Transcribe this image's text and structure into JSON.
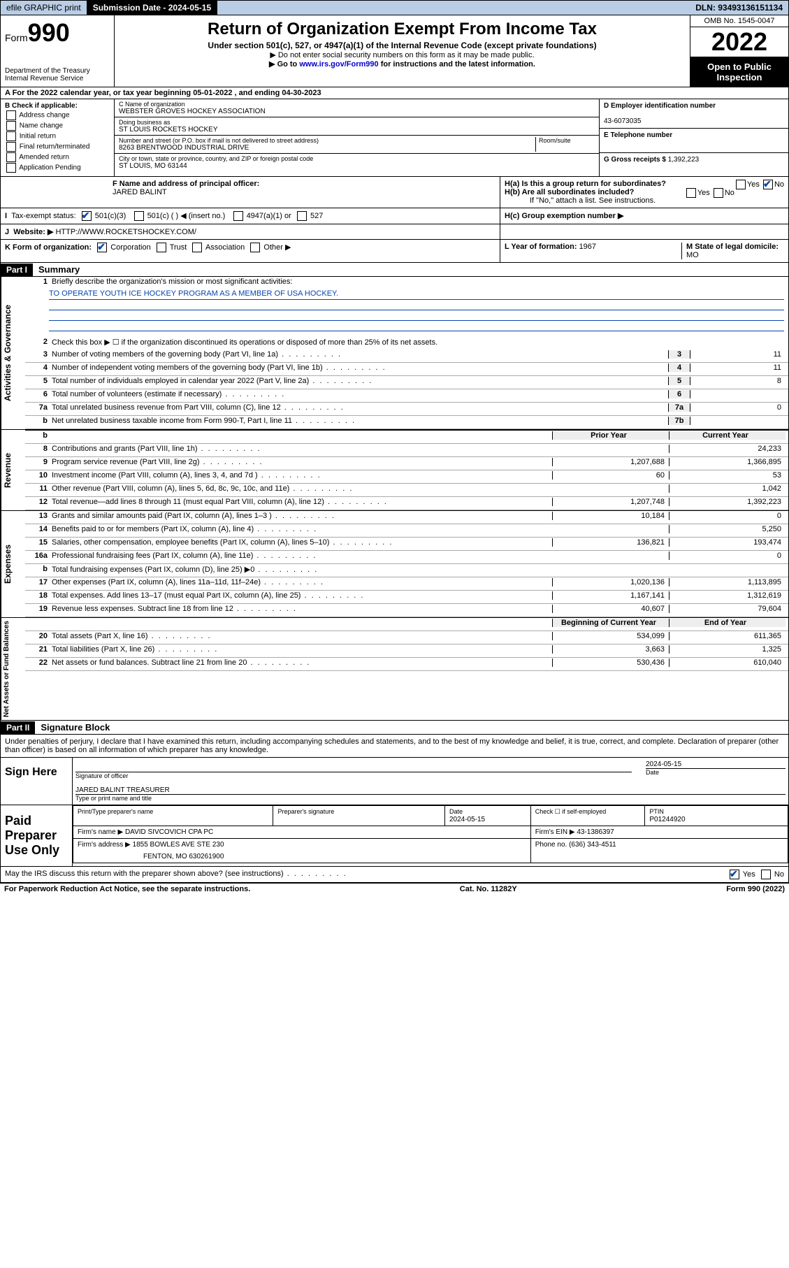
{
  "topbar": {
    "efile": "efile GRAPHIC print",
    "sub_date_lbl": "Submission Date - ",
    "sub_date": "2024-05-15",
    "dln_lbl": "DLN: ",
    "dln": "93493136151134"
  },
  "header": {
    "form_word": "Form",
    "form_num": "990",
    "dept": "Department of the Treasury\nInternal Revenue Service",
    "title": "Return of Organization Exempt From Income Tax",
    "sub1": "Under section 501(c), 527, or 4947(a)(1) of the Internal Revenue Code (except private foundations)",
    "sub2": "▶ Do not enter social security numbers on this form as it may be made public.",
    "sub3_pre": "▶ Go to ",
    "sub3_link": "www.irs.gov/Form990",
    "sub3_post": " for instructions and the latest information.",
    "omb": "OMB No. 1545-0047",
    "year": "2022",
    "open": "Open to Public Inspection"
  },
  "rowA": "A For the 2022 calendar year, or tax year beginning 05-01-2022   , and ending 04-30-2023",
  "colB": {
    "hdr": "B Check if applicable:",
    "items": [
      "Address change",
      "Name change",
      "Initial return",
      "Final return/terminated",
      "Amended return",
      "Application Pending"
    ]
  },
  "colC": {
    "name_lbl": "C Name of organization",
    "name": "WEBSTER GROVES HOCKEY ASSOCIATION",
    "dba_lbl": "Doing business as",
    "dba": "ST LOUIS ROCKETS HOCKEY",
    "addr_lbl": "Number and street (or P.O. box if mail is not delivered to street address)",
    "room_lbl": "Room/suite",
    "addr": "8263 BRENTWOOD INDUSTRIAL DRIVE",
    "city_lbl": "City or town, state or province, country, and ZIP or foreign postal code",
    "city": "ST LOUIS, MO  63144"
  },
  "colD": {
    "ein_lbl": "D Employer identification number",
    "ein": "43-6073035",
    "tel_lbl": "E Telephone number",
    "gross_lbl": "G Gross receipts $ ",
    "gross": "1,392,223"
  },
  "rowF": {
    "f_lbl": "F Name and address of principal officer:",
    "f_name": "JARED BALINT",
    "ha": "H(a)  Is this a group return for subordinates?",
    "hb": "H(b)  Are all subordinates included?",
    "hb_note": "If \"No,\" attach a list. See instructions.",
    "hc": "H(c)  Group exemption number ▶"
  },
  "rowI": {
    "lbl": "Tax-exempt status:",
    "opts": [
      "501(c)(3)",
      "501(c) (  ) ◀ (insert no.)",
      "4947(a)(1) or",
      "527"
    ]
  },
  "rowJ": {
    "lbl": "Website: ▶  ",
    "val": "HTTP://WWW.ROCKETSHOCKEY.COM/"
  },
  "rowK": {
    "lbl": "K Form of organization:",
    "opts": [
      "Corporation",
      "Trust",
      "Association",
      "Other ▶"
    ],
    "l_lbl": "L Year of formation: ",
    "l_val": "1967",
    "m_lbl": "M State of legal domicile:",
    "m_val": "MO"
  },
  "part1": {
    "hdr": "Part I",
    "title": "Summary",
    "vtabs": [
      "Activities & Governance",
      "Revenue",
      "Expenses",
      "Net Assets or Fund Balances"
    ],
    "l1_lbl": "Briefly describe the organization's mission or most significant activities:",
    "l1_val": "TO OPERATE YOUTH ICE HOCKEY PROGRAM AS A MEMBER OF USA HOCKEY.",
    "l2": "Check this box ▶ ☐  if the organization discontinued its operations or disposed of more than 25% of its net assets.",
    "lines_gov": [
      {
        "n": "3",
        "t": "Number of voting members of the governing body (Part VI, line 1a)",
        "box": "3",
        "v": "11"
      },
      {
        "n": "4",
        "t": "Number of independent voting members of the governing body (Part VI, line 1b)",
        "box": "4",
        "v": "11"
      },
      {
        "n": "5",
        "t": "Total number of individuals employed in calendar year 2022 (Part V, line 2a)",
        "box": "5",
        "v": "8"
      },
      {
        "n": "6",
        "t": "Total number of volunteers (estimate if necessary)",
        "box": "6",
        "v": ""
      },
      {
        "n": "7a",
        "t": "Total unrelated business revenue from Part VIII, column (C), line 12",
        "box": "7a",
        "v": "0"
      },
      {
        "n": "b",
        "t": "Net unrelated business taxable income from Form 990-T, Part I, line 11",
        "box": "7b",
        "v": ""
      }
    ],
    "col_hdrs": [
      "Prior Year",
      "Current Year"
    ],
    "lines_rev": [
      {
        "n": "8",
        "t": "Contributions and grants (Part VIII, line 1h)",
        "p": "",
        "c": "24,233"
      },
      {
        "n": "9",
        "t": "Program service revenue (Part VIII, line 2g)",
        "p": "1,207,688",
        "c": "1,366,895"
      },
      {
        "n": "10",
        "t": "Investment income (Part VIII, column (A), lines 3, 4, and 7d )",
        "p": "60",
        "c": "53"
      },
      {
        "n": "11",
        "t": "Other revenue (Part VIII, column (A), lines 5, 6d, 8c, 9c, 10c, and 11e)",
        "p": "",
        "c": "1,042"
      },
      {
        "n": "12",
        "t": "Total revenue—add lines 8 through 11 (must equal Part VIII, column (A), line 12)",
        "p": "1,207,748",
        "c": "1,392,223"
      }
    ],
    "lines_exp": [
      {
        "n": "13",
        "t": "Grants and similar amounts paid (Part IX, column (A), lines 1–3 )",
        "p": "10,184",
        "c": "0"
      },
      {
        "n": "14",
        "t": "Benefits paid to or for members (Part IX, column (A), line 4)",
        "p": "",
        "c": "5,250"
      },
      {
        "n": "15",
        "t": "Salaries, other compensation, employee benefits (Part IX, column (A), lines 5–10)",
        "p": "136,821",
        "c": "193,474"
      },
      {
        "n": "16a",
        "t": "Professional fundraising fees (Part IX, column (A), line 11e)",
        "p": "",
        "c": "0"
      },
      {
        "n": "b",
        "t": "Total fundraising expenses (Part IX, column (D), line 25) ▶0",
        "p": "",
        "c": "",
        "gray": true
      },
      {
        "n": "17",
        "t": "Other expenses (Part IX, column (A), lines 11a–11d, 11f–24e)",
        "p": "1,020,136",
        "c": "1,113,895"
      },
      {
        "n": "18",
        "t": "Total expenses. Add lines 13–17 (must equal Part IX, column (A), line 25)",
        "p": "1,167,141",
        "c": "1,312,619"
      },
      {
        "n": "19",
        "t": "Revenue less expenses. Subtract line 18 from line 12",
        "p": "40,607",
        "c": "79,604"
      }
    ],
    "col_hdrs2": [
      "Beginning of Current Year",
      "End of Year"
    ],
    "lines_net": [
      {
        "n": "20",
        "t": "Total assets (Part X, line 16)",
        "p": "534,099",
        "c": "611,365"
      },
      {
        "n": "21",
        "t": "Total liabilities (Part X, line 26)",
        "p": "3,663",
        "c": "1,325"
      },
      {
        "n": "22",
        "t": "Net assets or fund balances. Subtract line 21 from line 20",
        "p": "530,436",
        "c": "610,040"
      }
    ]
  },
  "part2": {
    "hdr": "Part II",
    "title": "Signature Block",
    "decl": "Under penalties of perjury, I declare that I have examined this return, including accompanying schedules and statements, and to the best of my knowledge and belief, it is true, correct, and complete. Declaration of preparer (other than officer) is based on all information of which preparer has any knowledge.",
    "sign_here": "Sign Here",
    "sig_officer": "Signature of officer",
    "sig_date": "2024-05-15",
    "sig_date_lbl": "Date",
    "officer": "JARED BALINT TREASURER",
    "officer_lbl": "Type or print name and title",
    "paid_prep": "Paid Preparer Use Only",
    "prep_name_lbl": "Print/Type preparer's name",
    "prep_sig_lbl": "Preparer's signature",
    "prep_date_lbl": "Date",
    "prep_date": "2024-05-15",
    "self_emp": "Check ☐ if self-employed",
    "ptin_lbl": "PTIN",
    "ptin": "P01244920",
    "firm_name_lbl": "Firm's name    ▶ ",
    "firm_name": "DAVID SIVCOVICH CPA PC",
    "firm_ein_lbl": "Firm's EIN ▶ ",
    "firm_ein": "43-1386397",
    "firm_addr_lbl": "Firm's address ▶ ",
    "firm_addr": "1855 BOWLES AVE STE 230",
    "firm_city": "FENTON, MO  630261900",
    "phone_lbl": "Phone no. ",
    "phone": "(636) 343-4511",
    "discuss": "May the IRS discuss this return with the preparer shown above? (see instructions)"
  },
  "footer": {
    "left": "For Paperwork Reduction Act Notice, see the separate instructions.",
    "mid": "Cat. No. 11282Y",
    "right": "Form 990 (2022)"
  },
  "colors": {
    "link": "#0645ad",
    "topbar_bg": "#b9cde5"
  }
}
